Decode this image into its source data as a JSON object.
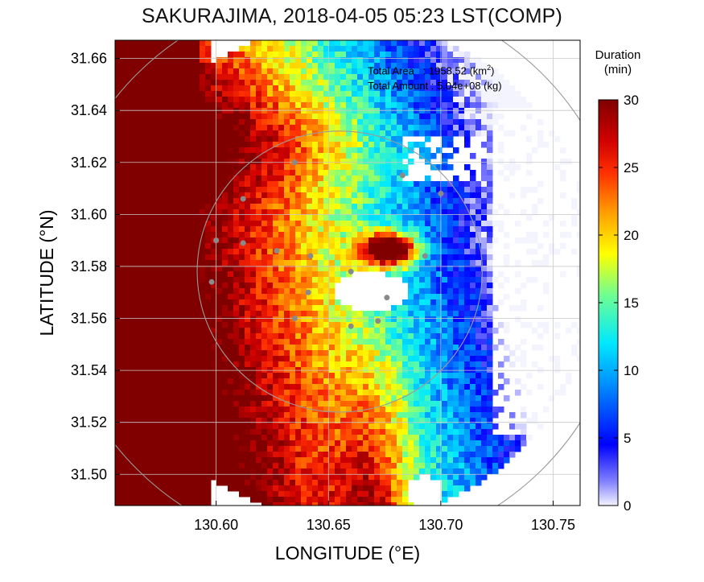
{
  "chart_data": {
    "type": "heatmap",
    "title": "SAKURAJIMA, 2018-04-05 05:23 LST(COMP)",
    "xlabel": "LONGITUDE (°E)",
    "ylabel": "LATITUDE (°N)",
    "xlim": [
      130.555,
      130.762
    ],
    "ylim": [
      31.488,
      31.667
    ],
    "xticks": [
      "130.60",
      "130.65",
      "130.70",
      "130.75"
    ],
    "xtick_values": [
      130.6,
      130.65,
      130.7,
      130.75
    ],
    "yticks": [
      "31.50",
      "31.52",
      "31.54",
      "31.56",
      "31.58",
      "31.60",
      "31.62",
      "31.64",
      "31.66"
    ],
    "ytick_values": [
      31.5,
      31.52,
      31.54,
      31.56,
      31.58,
      31.6,
      31.62,
      31.64,
      31.66
    ],
    "grid": true,
    "colorbar": {
      "title_line1": "Duration",
      "title_line2": "(min)",
      "min": 0,
      "max": 30,
      "ticks": [
        "0",
        "5",
        "10",
        "15",
        "20",
        "25",
        "30"
      ],
      "tick_values": [
        0,
        5,
        10,
        15,
        20,
        25,
        30
      ]
    },
    "annotations": {
      "total_area": "Total Area   : 1958.52 (km",
      "total_area_sup": "2",
      "total_area_end": ")",
      "total_amount": "Total Amount : 5.04e+08 (kg)"
    },
    "radar_rings": [
      {
        "center_lon": 130.655,
        "center_lat": 31.578,
        "radius_km": 6
      },
      {
        "center_lon": 130.655,
        "center_lat": 31.578,
        "radius_km": 12
      }
    ],
    "stations": [
      {
        "lon": 130.635,
        "lat": 31.62
      },
      {
        "lon": 130.683,
        "lat": 31.615
      },
      {
        "lon": 130.7,
        "lat": 31.608
      },
      {
        "lon": 130.612,
        "lat": 31.606
      },
      {
        "lon": 130.6,
        "lat": 31.59
      },
      {
        "lon": 130.612,
        "lat": 31.589
      },
      {
        "lon": 130.627,
        "lat": 31.586
      },
      {
        "lon": 130.642,
        "lat": 31.584
      },
      {
        "lon": 130.66,
        "lat": 31.578
      },
      {
        "lon": 130.693,
        "lat": 31.584
      },
      {
        "lon": 130.598,
        "lat": 31.574
      },
      {
        "lon": 130.641,
        "lat": 31.57
      },
      {
        "lon": 130.676,
        "lat": 31.568
      },
      {
        "lon": 130.635,
        "lat": 31.56
      },
      {
        "lon": 130.672,
        "lat": 31.559
      },
      {
        "lon": 130.66,
        "lat": 31.557
      }
    ]
  }
}
